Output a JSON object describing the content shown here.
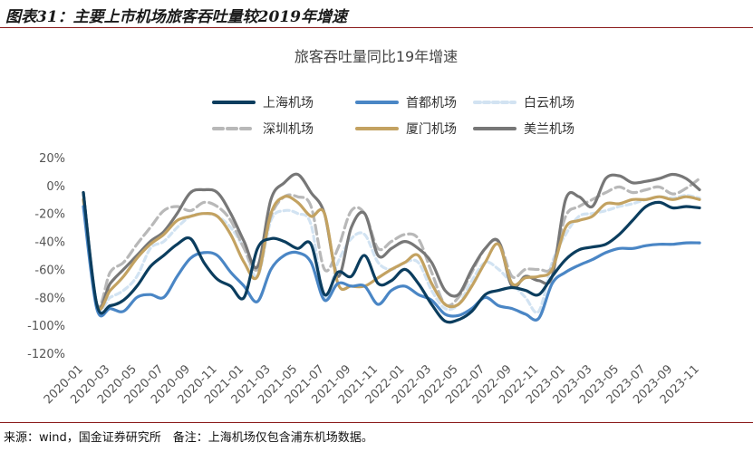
{
  "figure": {
    "title": "图表31：主要上市机场旅客吞吐量较2019年增速",
    "source": "来源：wind，国金证券研究所　备注：上海机场仅包含浦东机场数据。"
  },
  "chart_data": {
    "type": "line",
    "title": "旅客吞吐量同比19年增速",
    "xlabel": "",
    "ylabel": "",
    "ylim": [
      -120,
      20
    ],
    "yticks": [
      "20%",
      "0%",
      "-20%",
      "-40%",
      "-60%",
      "-80%",
      "-100%",
      "-120%"
    ],
    "xticks": [
      "2020-01",
      "2020-03",
      "2020-05",
      "2020-07",
      "2020-09",
      "2020-11",
      "2021-01",
      "2021-03",
      "2021-05",
      "2021-07",
      "2021-09",
      "2021-11",
      "2022-01",
      "2022-03",
      "2022-05",
      "2022-07",
      "2022-09",
      "2022-11",
      "2023-01",
      "2023-03",
      "2023-05",
      "2023-07",
      "2023-09",
      "2023-11"
    ],
    "legend_position": "top",
    "grid": false,
    "x": [
      "2020-01",
      "2020-02",
      "2020-03",
      "2020-04",
      "2020-05",
      "2020-06",
      "2020-07",
      "2020-08",
      "2020-09",
      "2020-10",
      "2020-11",
      "2020-12",
      "2021-01",
      "2021-02",
      "2021-03",
      "2021-04",
      "2021-05",
      "2021-06",
      "2021-07",
      "2021-08",
      "2021-09",
      "2021-10",
      "2021-11",
      "2021-12",
      "2022-01",
      "2022-02",
      "2022-03",
      "2022-04",
      "2022-05",
      "2022-06",
      "2022-07",
      "2022-08",
      "2022-09",
      "2022-10",
      "2022-11",
      "2022-12",
      "2023-01",
      "2023-02",
      "2023-03",
      "2023-04",
      "2023-05",
      "2023-06",
      "2023-07",
      "2023-08",
      "2023-09",
      "2023-10",
      "2023-11"
    ],
    "series": [
      {
        "name": "上海机场",
        "color": "#0b3d5e",
        "dash": "solid",
        "values": [
          -5,
          -85,
          -86,
          -82,
          -72,
          -58,
          -50,
          -42,
          -38,
          -55,
          -67,
          -72,
          -80,
          -45,
          -38,
          -40,
          -45,
          -42,
          -78,
          -62,
          -65,
          -50,
          -70,
          -68,
          -60,
          -70,
          -85,
          -97,
          -96,
          -90,
          -78,
          -75,
          -73,
          -75,
          -78,
          -65,
          -53,
          -46,
          -44,
          -42,
          -35,
          -25,
          -15,
          -12,
          -16,
          -15,
          -16
        ]
      },
      {
        "name": "首都机场",
        "color": "#4a86c5",
        "dash": "solid",
        "values": [
          -15,
          -88,
          -88,
          -90,
          -80,
          -78,
          -80,
          -65,
          -52,
          -48,
          -50,
          -62,
          -72,
          -83,
          -60,
          -50,
          -48,
          -55,
          -82,
          -70,
          -72,
          -72,
          -85,
          -75,
          -72,
          -78,
          -82,
          -92,
          -93,
          -88,
          -80,
          -86,
          -88,
          -92,
          -95,
          -70,
          -62,
          -57,
          -53,
          -48,
          -45,
          -45,
          -43,
          -42,
          -42,
          -41,
          -41
        ]
      },
      {
        "name": "白云机场",
        "color": "#d2e3f2",
        "dash": "6,4",
        "values": [
          -10,
          -85,
          -80,
          -75,
          -65,
          -45,
          -40,
          -30,
          -22,
          -20,
          -22,
          -30,
          -45,
          -65,
          -25,
          -18,
          -20,
          -28,
          -80,
          -55,
          -38,
          -35,
          -55,
          -60,
          -55,
          -55,
          -75,
          -88,
          -85,
          -68,
          -55,
          -60,
          -70,
          -80,
          -90,
          -55,
          -35,
          -22,
          -20,
          -18,
          -15,
          -13,
          -10,
          -8,
          -9,
          -7,
          -9
        ]
      },
      {
        "name": "深圳机场",
        "color": "#b8b8b8",
        "dash": "10,5",
        "values": [
          -5,
          -85,
          -62,
          -55,
          -42,
          -30,
          -18,
          -15,
          -18,
          -12,
          -15,
          -25,
          -45,
          -60,
          -22,
          -8,
          -8,
          -15,
          -60,
          -45,
          -18,
          -20,
          -45,
          -40,
          -35,
          -38,
          -62,
          -85,
          -80,
          -62,
          -45,
          -40,
          -65,
          -60,
          -60,
          -58,
          -22,
          -15,
          -10,
          -5,
          -1,
          -5,
          -3,
          -1,
          -6,
          -2,
          5
        ]
      },
      {
        "name": "厦门机场",
        "color": "#c3a261",
        "dash": "solid",
        "values": [
          -10,
          -85,
          -75,
          -65,
          -52,
          -42,
          -35,
          -25,
          -22,
          -20,
          -22,
          -35,
          -55,
          -65,
          -20,
          -8,
          -12,
          -22,
          -20,
          -70,
          -72,
          -72,
          -66,
          -60,
          -55,
          -50,
          -70,
          -85,
          -85,
          -72,
          -55,
          -42,
          -70,
          -66,
          -65,
          -60,
          -30,
          -25,
          -22,
          -13,
          -13,
          -10,
          -10,
          -8,
          -10,
          -8,
          -10
        ]
      },
      {
        "name": "美兰机场",
        "color": "#777777",
        "dash": "solid",
        "values": [
          -5,
          -85,
          -70,
          -60,
          -50,
          -40,
          -33,
          -20,
          -5,
          -3,
          -5,
          -20,
          -40,
          -58,
          -10,
          2,
          8,
          -5,
          -20,
          -65,
          -30,
          -20,
          -50,
          -45,
          -40,
          -45,
          -55,
          -75,
          -78,
          -60,
          -45,
          -40,
          -72,
          -65,
          -68,
          -65,
          -10,
          -8,
          -15,
          5,
          7,
          2,
          3,
          5,
          8,
          5,
          -3
        ]
      }
    ]
  }
}
